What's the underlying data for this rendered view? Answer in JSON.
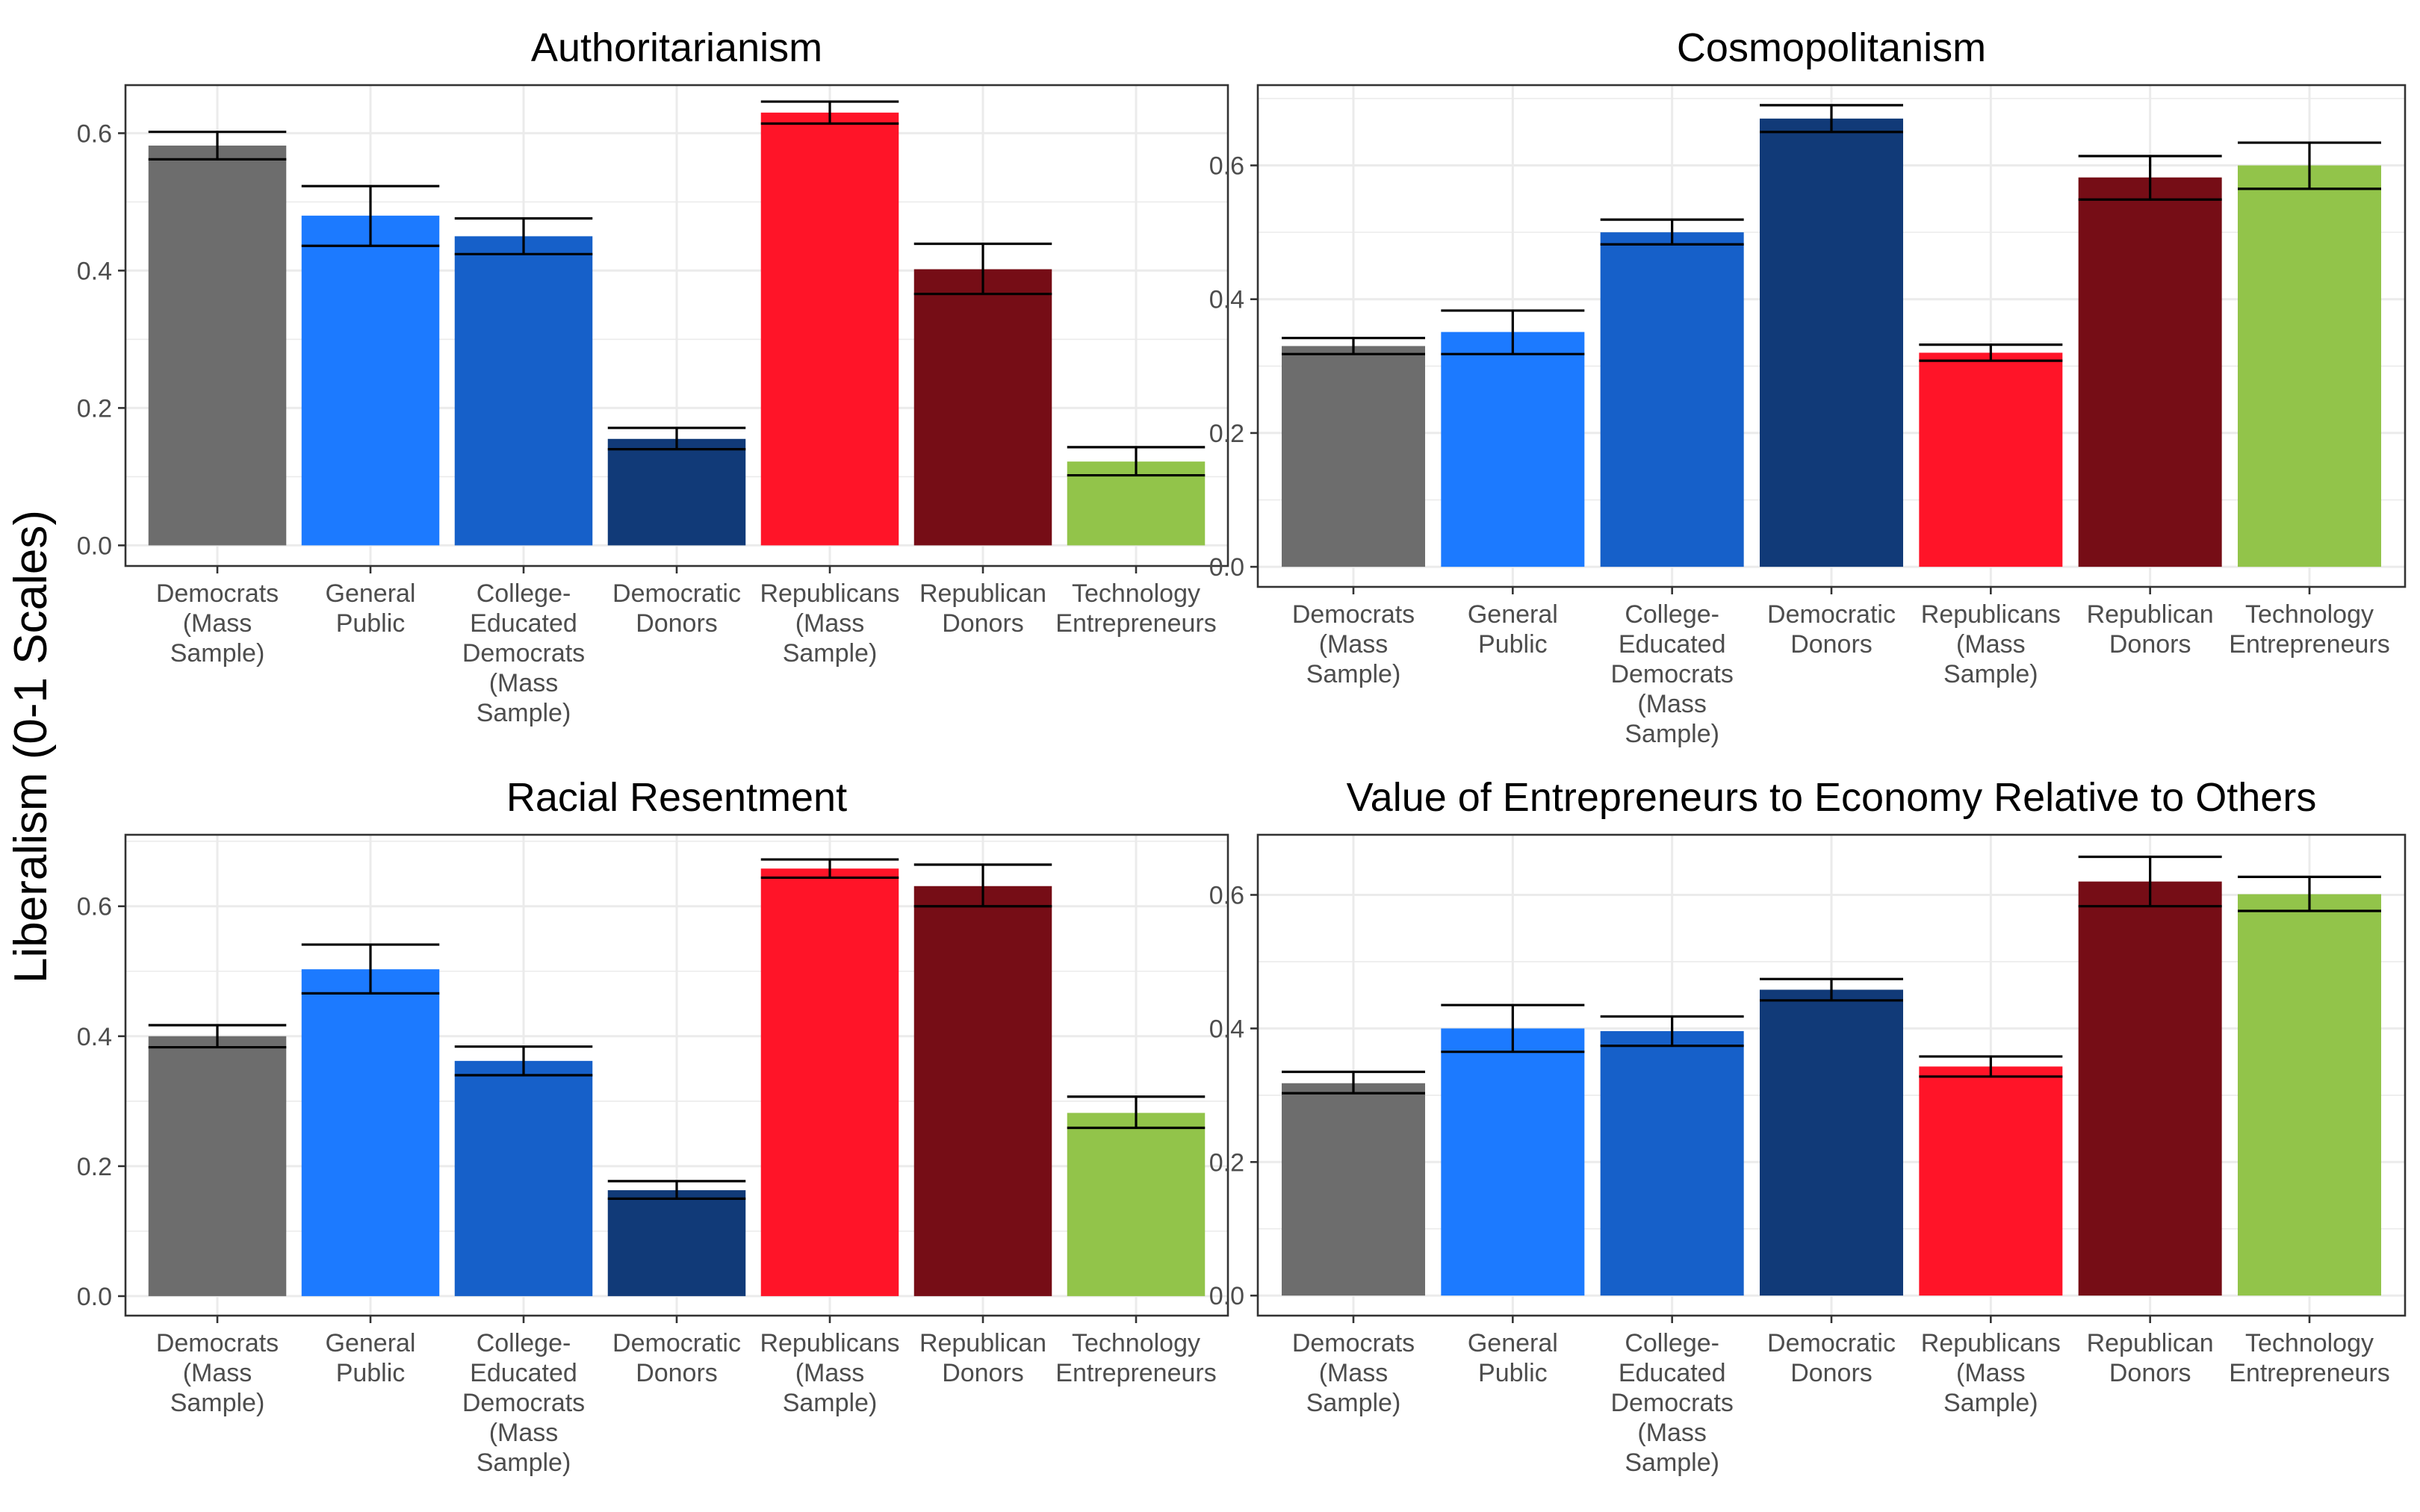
{
  "figure": {
    "ylabel": "Liberalism (0-1 Scales)"
  },
  "chart_data": [
    {
      "type": "bar",
      "title": "Authoritarianism",
      "categories": [
        "Democrats (Mass Sample)",
        "General Public",
        "College-Educated Democrats (Mass Sample)",
        "Democratic Donors",
        "Republicans (Mass Sample)",
        "Republican Donors",
        "Technology Entrepreneurs"
      ],
      "category_lines": [
        [
          "Democrats",
          "(Mass",
          "Sample)"
        ],
        [
          "General",
          "Public"
        ],
        [
          "College-",
          "Educated",
          "Democrats",
          "(Mass",
          "Sample)"
        ],
        [
          "Democratic",
          "Donors"
        ],
        [
          "Republicans",
          "(Mass",
          "Sample)"
        ],
        [
          "Republican",
          "Donors"
        ],
        [
          "Technology",
          "Entrepreneurs"
        ]
      ],
      "values": [
        0.582,
        0.48,
        0.45,
        0.155,
        0.63,
        0.402,
        0.122
      ],
      "error_low": [
        0.562,
        0.436,
        0.424,
        0.14,
        0.614,
        0.366,
        0.102
      ],
      "error_high": [
        0.602,
        0.523,
        0.476,
        0.171,
        0.646,
        0.439,
        0.143
      ],
      "ylim": [
        -0.03,
        0.67
      ],
      "yticks": [
        0.0,
        0.2,
        0.4,
        0.6
      ],
      "ytick_labels": [
        "0.0",
        "0.2",
        "0.4",
        "0.6"
      ],
      "xlabel": "",
      "grid": true,
      "legend": "none"
    },
    {
      "type": "bar",
      "title": "Cosmopolitanism",
      "categories": [
        "Democrats (Mass Sample)",
        "General Public",
        "College-Educated Democrats (Mass Sample)",
        "Democratic Donors",
        "Republicans (Mass Sample)",
        "Republican Donors",
        "Technology Entrepreneurs"
      ],
      "category_lines": [
        [
          "Democrats",
          "(Mass",
          "Sample)"
        ],
        [
          "General",
          "Public"
        ],
        [
          "College-",
          "Educated",
          "Democrats",
          "(Mass",
          "Sample)"
        ],
        [
          "Democratic",
          "Donors"
        ],
        [
          "Republicans",
          "(Mass",
          "Sample)"
        ],
        [
          "Republican",
          "Donors"
        ],
        [
          "Technology",
          "Entrepreneurs"
        ]
      ],
      "values": [
        0.33,
        0.351,
        0.5,
        0.67,
        0.32,
        0.582,
        0.6
      ],
      "error_low": [
        0.318,
        0.318,
        0.482,
        0.65,
        0.308,
        0.549,
        0.565
      ],
      "error_high": [
        0.342,
        0.383,
        0.519,
        0.69,
        0.332,
        0.614,
        0.634
      ],
      "ylim": [
        -0.03,
        0.72
      ],
      "yticks": [
        0.0,
        0.2,
        0.4,
        0.6
      ],
      "ytick_labels": [
        "0.0",
        "0.2",
        "0.4",
        "0.6"
      ],
      "xlabel": "",
      "grid": true,
      "legend": "none"
    },
    {
      "type": "bar",
      "title": "Racial Resentment",
      "categories": [
        "Democrats (Mass Sample)",
        "General Public",
        "College-Educated Democrats (Mass Sample)",
        "Democratic Donors",
        "Republicans (Mass Sample)",
        "Republican Donors",
        "Technology Entrepreneurs"
      ],
      "category_lines": [
        [
          "Democrats",
          "(Mass",
          "Sample)"
        ],
        [
          "General",
          "Public"
        ],
        [
          "College-",
          "Educated",
          "Democrats",
          "(Mass",
          "Sample)"
        ],
        [
          "Democratic",
          "Donors"
        ],
        [
          "Republicans",
          "(Mass",
          "Sample)"
        ],
        [
          "Republican",
          "Donors"
        ],
        [
          "Technology",
          "Entrepreneurs"
        ]
      ],
      "values": [
        0.4,
        0.503,
        0.362,
        0.163,
        0.658,
        0.631,
        0.282
      ],
      "error_low": [
        0.383,
        0.466,
        0.34,
        0.15,
        0.644,
        0.6,
        0.259
      ],
      "error_high": [
        0.417,
        0.541,
        0.384,
        0.177,
        0.672,
        0.664,
        0.307
      ],
      "ylim": [
        -0.03,
        0.71
      ],
      "yticks": [
        0.0,
        0.2,
        0.4,
        0.6
      ],
      "ytick_labels": [
        "0.0",
        "0.2",
        "0.4",
        "0.6"
      ],
      "xlabel": "",
      "grid": true,
      "legend": "none"
    },
    {
      "type": "bar",
      "title": "Value of Entrepreneurs to Economy Relative to Others",
      "categories": [
        "Democrats (Mass Sample)",
        "General Public",
        "College-Educated Democrats (Mass Sample)",
        "Democratic Donors",
        "Republicans (Mass Sample)",
        "Republican Donors",
        "Technology Entrepreneurs"
      ],
      "category_lines": [
        [
          "Democrats",
          "(Mass",
          "Sample)"
        ],
        [
          "General",
          "Public"
        ],
        [
          "College-",
          "Educated",
          "Democrats",
          "(Mass",
          "Sample)"
        ],
        [
          "Democratic",
          "Donors"
        ],
        [
          "Republicans",
          "(Mass",
          "Sample)"
        ],
        [
          "Republican",
          "Donors"
        ],
        [
          "Technology",
          "Entrepreneurs"
        ]
      ],
      "values": [
        0.318,
        0.4,
        0.396,
        0.458,
        0.343,
        0.62,
        0.601
      ],
      "error_low": [
        0.303,
        0.365,
        0.374,
        0.442,
        0.328,
        0.583,
        0.576
      ],
      "error_high": [
        0.335,
        0.435,
        0.418,
        0.474,
        0.358,
        0.657,
        0.627
      ],
      "ylim": [
        -0.03,
        0.69
      ],
      "yticks": [
        0.0,
        0.2,
        0.4,
        0.6
      ],
      "ytick_labels": [
        "0.0",
        "0.2",
        "0.4",
        "0.6"
      ],
      "xlabel": "",
      "grid": true,
      "legend": "none"
    }
  ],
  "colors": {
    "bars": [
      "#6d6d6d",
      "#1c7aff",
      "#1660c9",
      "#113a78",
      "#ff1428",
      "#760d16",
      "#92c44a"
    ],
    "grid": "#ebebeb",
    "border": "#333333",
    "error_bar": "#000000",
    "tick_text": "#4d4d4d"
  }
}
